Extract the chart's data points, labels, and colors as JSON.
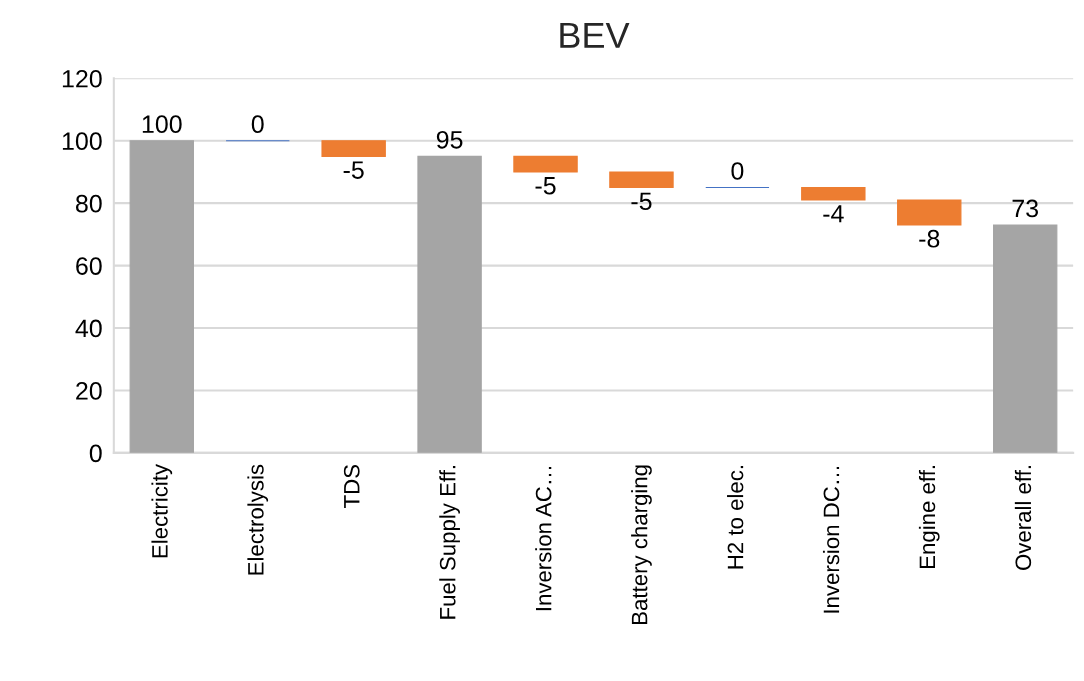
{
  "chart_data": {
    "type": "bar",
    "title": "BEV",
    "categories": [
      "Electricity",
      "Electrolysis",
      "TDS",
      "Fuel Supply Eff.",
      "Inversion AC…",
      "Battery charging",
      "H2 to elec.",
      "Inversion DC…",
      "Engine eff.",
      "Overall eff."
    ],
    "values": [
      100,
      0,
      -5,
      95,
      -5,
      -5,
      0,
      -4,
      -8,
      73
    ],
    "base": [
      0,
      100,
      100,
      0,
      95,
      90,
      85,
      85,
      81,
      0
    ],
    "colors": [
      "#a5a5a5",
      "#4472c4",
      "#ed7d31",
      "#a5a5a5",
      "#ed7d31",
      "#ed7d31",
      "#4472c4",
      "#ed7d31",
      "#ed7d31",
      "#a5a5a5"
    ],
    "ylim": [
      0,
      120
    ],
    "yticks": [
      0,
      20,
      40,
      60,
      80,
      100,
      120
    ],
    "grid": "y",
    "data_labels": true
  }
}
